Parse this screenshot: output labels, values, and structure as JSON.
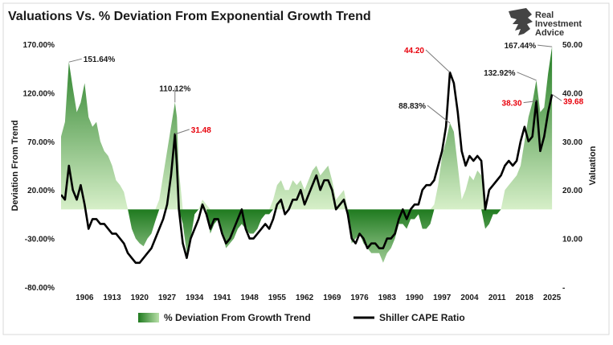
{
  "title": "Valuations Vs. % Deviation From Exponential Growth Trend",
  "brand": {
    "line1": "Real",
    "line2": "Investment",
    "line3": "Advice"
  },
  "colors": {
    "area_dark": "#1f7a1f",
    "area_light": "#b8e0a8",
    "line": "#000000",
    "highlight": "#e8000b"
  },
  "chart_data": {
    "type": "area",
    "title": "Valuations Vs. % Deviation From Exponential Growth Trend",
    "left_axis": {
      "label": "Deviation From Trend",
      "ticks": [
        "170.00%",
        "120.00%",
        "70.00%",
        "20.00%",
        "-30.00%",
        "-80.00%"
      ],
      "range": [
        -80,
        170
      ]
    },
    "right_axis": {
      "label": "Valuation",
      "ticks": [
        "50.00",
        "40.00",
        "30.00",
        "20.00",
        "10.00",
        "-"
      ],
      "range": [
        0,
        50
      ]
    },
    "x_axis": {
      "ticks": [
        "1906",
        "1913",
        "1920",
        "1927",
        "1934",
        "1941",
        "1948",
        "1955",
        "1962",
        "1969",
        "1976",
        "1983",
        "1990",
        "1997",
        "2004",
        "2011",
        "2018",
        "2025"
      ],
      "range": [
        1900,
        2026
      ]
    },
    "series": [
      {
        "name": "% Deviation From Growth Trend",
        "type": "area",
        "axis": "left",
        "x": [
          1900,
          1901,
          1902,
          1903,
          1904,
          1905,
          1906,
          1907,
          1908,
          1909,
          1910,
          1911,
          1912,
          1913,
          1914,
          1915,
          1916,
          1917,
          1918,
          1919,
          1920,
          1921,
          1922,
          1923,
          1924,
          1925,
          1926,
          1927,
          1928,
          1929,
          1929.5,
          1930,
          1931,
          1932,
          1933,
          1934,
          1935,
          1936,
          1937,
          1938,
          1939,
          1940,
          1941,
          1942,
          1943,
          1944,
          1945,
          1946,
          1947,
          1948,
          1949,
          1950,
          1951,
          1952,
          1953,
          1954,
          1955,
          1956,
          1957,
          1958,
          1959,
          1960,
          1961,
          1962,
          1963,
          1964,
          1965,
          1966,
          1967,
          1968,
          1969,
          1970,
          1971,
          1972,
          1973,
          1974,
          1975,
          1976,
          1977,
          1978,
          1979,
          1980,
          1981,
          1982,
          1983,
          1984,
          1985,
          1986,
          1987,
          1988,
          1989,
          1990,
          1991,
          1992,
          1993,
          1994,
          1995,
          1996,
          1997,
          1998,
          1999,
          2000,
          2001,
          2002,
          2003,
          2004,
          2005,
          2006,
          2007,
          2008,
          2009,
          2010,
          2011,
          2012,
          2013,
          2014,
          2015,
          2016,
          2017,
          2018,
          2019,
          2020,
          2021,
          2022,
          2023,
          2024,
          2025
        ],
        "values": [
          75,
          90,
          151.64,
          125,
          100,
          110,
          130,
          95,
          85,
          90,
          70,
          60,
          55,
          45,
          30,
          25,
          18,
          0,
          -20,
          -30,
          -35,
          -38,
          -30,
          -25,
          -12,
          10,
          35,
          60,
          85,
          110.12,
          95,
          40,
          -15,
          -45,
          -30,
          -5,
          0,
          10,
          5,
          -25,
          -15,
          -10,
          -25,
          -40,
          -35,
          -30,
          -20,
          -15,
          -20,
          -25,
          -25,
          -20,
          -10,
          -5,
          -5,
          10,
          25,
          30,
          20,
          20,
          30,
          25,
          30,
          20,
          30,
          40,
          45,
          35,
          40,
          45,
          30,
          10,
          15,
          20,
          0,
          -35,
          -30,
          -25,
          -35,
          -40,
          -45,
          -45,
          -45,
          -55,
          -45,
          -40,
          -30,
          -15,
          -15,
          -20,
          -10,
          -10,
          -5,
          -20,
          -20,
          -15,
          5,
          25,
          55,
          70,
          88.83,
          80,
          45,
          10,
          20,
          35,
          30,
          40,
          35,
          -20,
          -15,
          -5,
          -5,
          0,
          20,
          25,
          30,
          35,
          45,
          70,
          95,
          110,
          132.92,
          100,
          105,
          140,
          167.44
        ],
        "labels": [
          {
            "x": 1902,
            "value": 151.64,
            "text": "151.64%"
          },
          {
            "x": 1929,
            "value": 110.12,
            "text": "110.12%"
          },
          {
            "x": 1999,
            "value": 88.83,
            "text": "88.83%"
          },
          {
            "x": 2021,
            "value": 132.92,
            "text": "132.92%"
          },
          {
            "x": 2025,
            "value": 167.44,
            "text": "167.44%"
          }
        ]
      },
      {
        "name": "Shiller CAPE Ratio",
        "type": "line",
        "axis": "right",
        "x": [
          1900,
          1901,
          1902,
          1903,
          1904,
          1905,
          1906,
          1907,
          1908,
          1909,
          1910,
          1911,
          1912,
          1913,
          1914,
          1915,
          1916,
          1917,
          1918,
          1919,
          1920,
          1921,
          1922,
          1923,
          1924,
          1925,
          1926,
          1927,
          1928,
          1929,
          1929.5,
          1930,
          1931,
          1932,
          1933,
          1934,
          1935,
          1936,
          1937,
          1938,
          1939,
          1940,
          1941,
          1942,
          1943,
          1944,
          1945,
          1946,
          1947,
          1948,
          1949,
          1950,
          1951,
          1952,
          1953,
          1954,
          1955,
          1956,
          1957,
          1958,
          1959,
          1960,
          1961,
          1962,
          1963,
          1964,
          1965,
          1966,
          1967,
          1968,
          1969,
          1970,
          1971,
          1972,
          1973,
          1974,
          1975,
          1976,
          1977,
          1978,
          1979,
          1980,
          1981,
          1982,
          1983,
          1984,
          1985,
          1986,
          1987,
          1988,
          1989,
          1990,
          1991,
          1992,
          1993,
          1994,
          1995,
          1996,
          1997,
          1998,
          1999,
          2000,
          2001,
          2002,
          2003,
          2004,
          2005,
          2006,
          2007,
          2008,
          2009,
          2010,
          2011,
          2012,
          2013,
          2014,
          2015,
          2016,
          2017,
          2018,
          2019,
          2020,
          2021,
          2022,
          2023,
          2024,
          2025
        ],
        "values": [
          19,
          18,
          25,
          20,
          18,
          21,
          17,
          12,
          14,
          14,
          13,
          13,
          12,
          11,
          11,
          10,
          9,
          7,
          6,
          5,
          5,
          6,
          7,
          8,
          10,
          12,
          14,
          17,
          23,
          31.48,
          25,
          16,
          9,
          6,
          10,
          12,
          14,
          17,
          15,
          12,
          14,
          14,
          11,
          9,
          10,
          12,
          14,
          16,
          12,
          10,
          10,
          11,
          12,
          13,
          12,
          14,
          17,
          18,
          15,
          16,
          18,
          18,
          20,
          17,
          19,
          21,
          23,
          20,
          22,
          22,
          20,
          16,
          17,
          18,
          15,
          10,
          9,
          11,
          10,
          8,
          9,
          9,
          8,
          8,
          10,
          10,
          11,
          14,
          16,
          14,
          16,
          17,
          17,
          20,
          21,
          21,
          22,
          25,
          28,
          33,
          44.2,
          42,
          36,
          28,
          25,
          27,
          26,
          27,
          26,
          16,
          20,
          21,
          22,
          23,
          25,
          26,
          25,
          26,
          30,
          33,
          30,
          31,
          38.3,
          28,
          31,
          36,
          39.68
        ],
        "labels": [
          {
            "x": 1929,
            "value": 31.48,
            "text": "31.48"
          },
          {
            "x": 1999,
            "value": 44.2,
            "text": "44.20"
          },
          {
            "x": 2021,
            "value": 38.3,
            "text": "38.30"
          },
          {
            "x": 2025,
            "value": 39.68,
            "text": "39.68"
          }
        ]
      }
    ],
    "grid": false,
    "legend_position": "bottom"
  }
}
